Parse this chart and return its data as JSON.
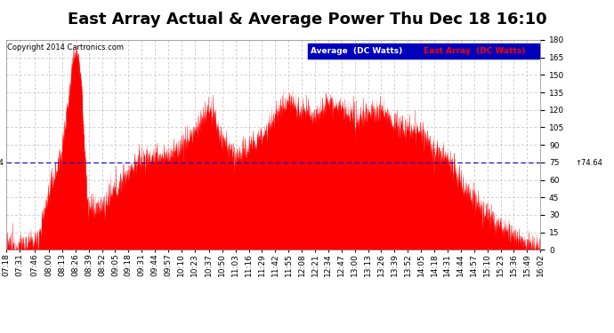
{
  "title": "East Array Actual & Average Power Thu Dec 18 16:10",
  "copyright": "Copyright 2014 Cartronics.com",
  "legend_label_avg": "Average  (DC Watts)",
  "legend_label_arr": "East Array  (DC Watts)",
  "legend_bg": "#0000bb",
  "ymin": 0.0,
  "ymax": 180.0,
  "yticks": [
    0.0,
    15.0,
    30.0,
    45.0,
    60.0,
    75.0,
    90.0,
    105.0,
    120.0,
    135.0,
    150.0,
    165.0,
    180.0
  ],
  "avg_line": 74.64,
  "avg_line_color": "#0000cc",
  "fill_color": "#ff0000",
  "background_color": "#ffffff",
  "grid_color": "#bbbbbb",
  "title_fontsize": 13,
  "tick_fontsize": 6.5,
  "xtick_labels": [
    "07:18",
    "07:31",
    "07:46",
    "08:00",
    "08:13",
    "08:26",
    "08:39",
    "08:52",
    "09:05",
    "09:18",
    "09:31",
    "09:44",
    "09:57",
    "10:10",
    "10:23",
    "10:37",
    "10:50",
    "11:03",
    "11:16",
    "11:29",
    "11:42",
    "11:55",
    "12:08",
    "12:21",
    "12:34",
    "12:47",
    "13:00",
    "13:13",
    "13:26",
    "13:39",
    "13:52",
    "14:05",
    "14:18",
    "14:31",
    "14:44",
    "14:57",
    "15:10",
    "15:23",
    "15:36",
    "15:49",
    "16:02"
  ]
}
